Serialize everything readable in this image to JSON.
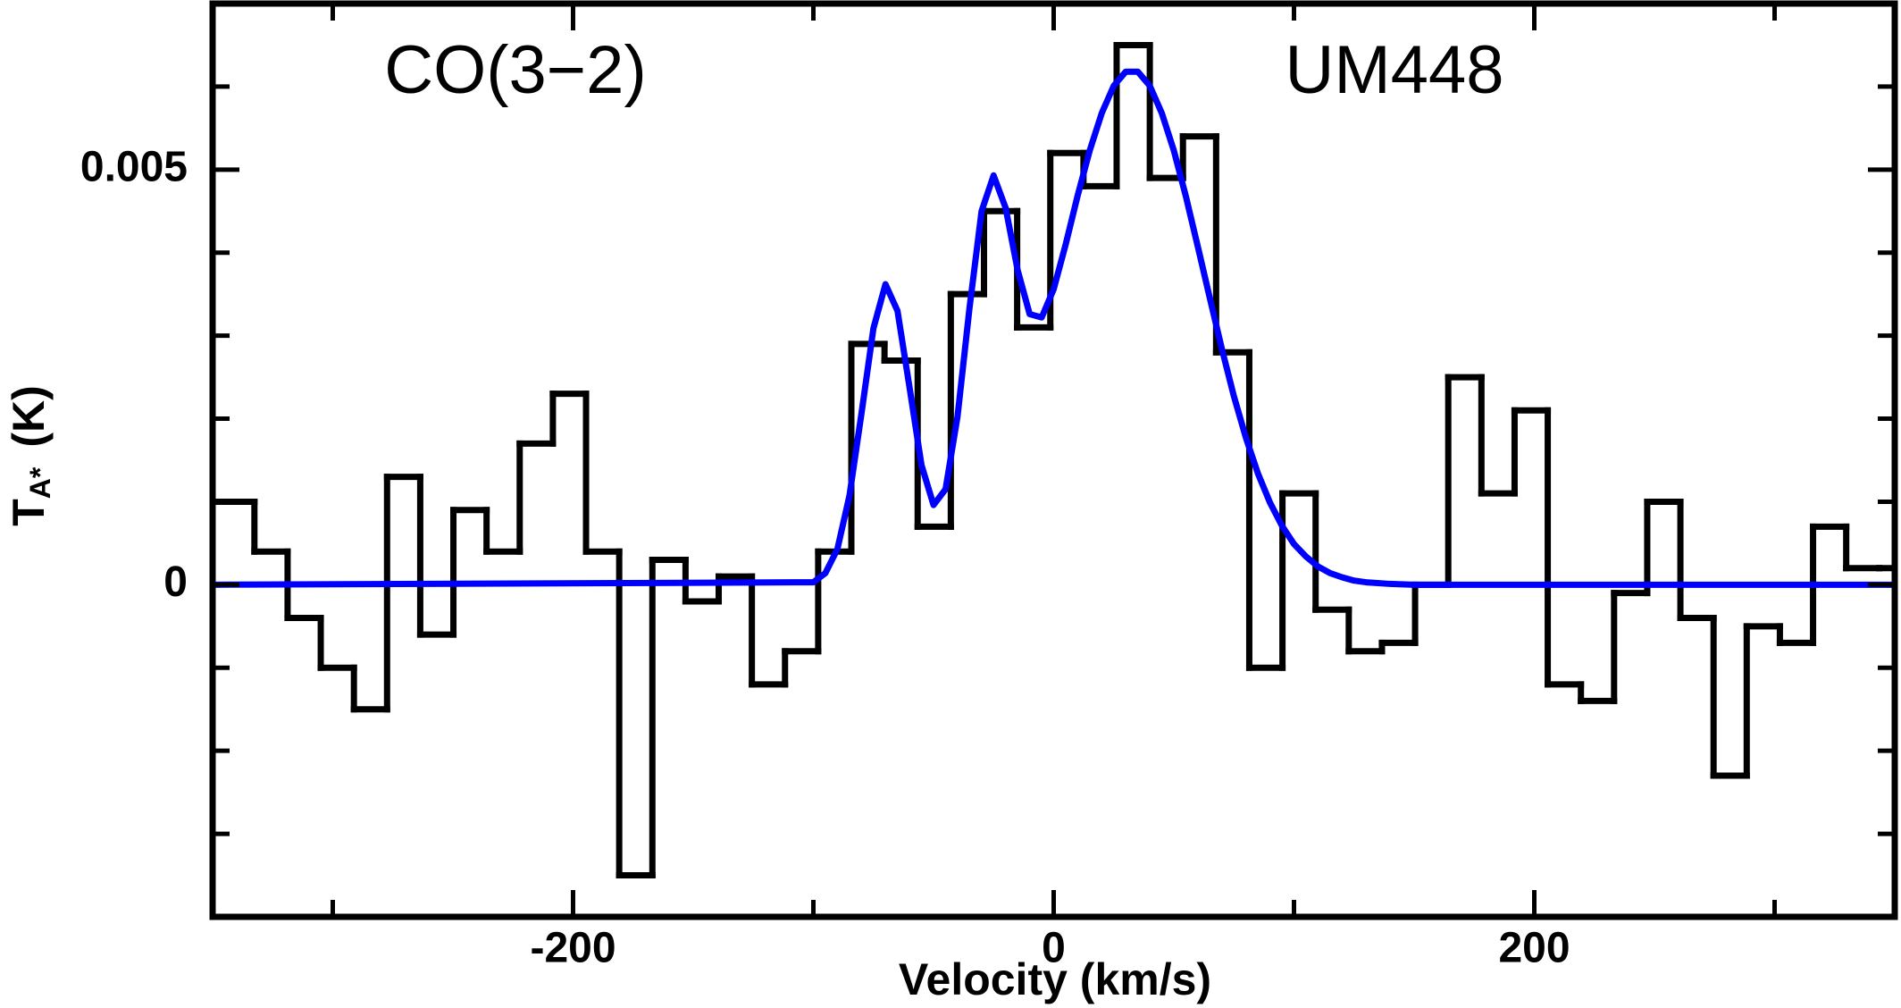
{
  "chart_data": {
    "type": "histogram",
    "annotations": [
      "CO(3−2)",
      "UM448"
    ],
    "xlabel": "Velocity (km/s)",
    "ylabel": [
      "T",
      "A*",
      "(K)"
    ],
    "xlim": [
      -350,
      350
    ],
    "ylim": [
      -0.004,
      0.007
    ],
    "xticks": [
      -200,
      0,
      200
    ],
    "xminor": [
      -300,
      -100,
      100,
      300
    ],
    "yticks": [
      0,
      0.005
    ],
    "yminor": [
      -0.003,
      -0.002,
      -0.001,
      0.001,
      0.002,
      0.003,
      0.004,
      0.006
    ],
    "histogram": {
      "color": "#000000",
      "bins": [
        -350,
        -332.6,
        -318.8,
        -305.0,
        -291.2,
        -277.4,
        -263.6,
        -249.8,
        -236.0,
        -222.2,
        -208.4,
        -194.6,
        -180.8,
        -167.0,
        -153.2,
        -139.4,
        -125.6,
        -111.8,
        -98.0,
        -84.2,
        -70.4,
        -56.6,
        -42.8,
        -29.0,
        -15.2,
        -1.4,
        12.4,
        26.2,
        40.0,
        53.8,
        67.6,
        81.4,
        95.2,
        109.0,
        122.8,
        136.6,
        150.4,
        164.2,
        178.0,
        191.8,
        205.6,
        219.4,
        233.2,
        247.0,
        260.8,
        274.6,
        288.4,
        302.2,
        316.0,
        329.8,
        343.6,
        350
      ],
      "counts": [
        0.001,
        0.0004,
        -0.0004,
        -0.001,
        -0.0015,
        0.0013,
        -0.0006,
        0.0009,
        0.0004,
        0.0017,
        0.0023,
        0.0004,
        -0.0035,
        0.0003,
        -0.0002,
        0.0001,
        -0.0012,
        -0.0008,
        0.0004,
        0.0029,
        0.0027,
        0.0007,
        0.0035,
        0.0045,
        0.0031,
        0.0052,
        0.0048,
        0.0065,
        0.0049,
        0.0054,
        0.0028,
        -0.001,
        0.0011,
        -0.0003,
        -0.0008,
        -0.0007,
        0,
        0.0025,
        0.0011,
        0.0021,
        -0.0012,
        -0.0014,
        -0.0001,
        0.001,
        -0.0004,
        -0.0023,
        -0.0005,
        -0.0007,
        0.0007,
        0.0002,
        0.0002
      ]
    },
    "fit": {
      "color": "#0000ff",
      "x": [
        -350,
        -100,
        -95,
        -90,
        -85,
        -80,
        -75,
        -70,
        -65,
        -60,
        -55,
        -50,
        -45,
        -40,
        -35,
        -30,
        -25,
        -20,
        -15,
        -10,
        -5,
        0,
        5,
        10,
        15,
        20,
        25,
        30,
        35,
        40,
        45,
        50,
        55,
        60,
        65,
        70,
        75,
        80,
        85,
        90,
        95,
        100,
        105,
        110,
        115,
        120,
        125,
        130,
        140,
        150,
        350
      ],
      "values": [
        0,
        3e-05,
        0.00014,
        0.00043,
        0.00107,
        0.00206,
        0.00309,
        0.00362,
        0.0033,
        0.00238,
        0.00144,
        0.00096,
        0.00115,
        0.00203,
        0.00334,
        0.0045,
        0.00493,
        0.00454,
        0.00379,
        0.00326,
        0.00322,
        0.00356,
        0.0041,
        0.00469,
        0.00523,
        0.00568,
        0.00601,
        0.00618,
        0.00618,
        0.00601,
        0.00568,
        0.00523,
        0.00468,
        0.00407,
        0.00345,
        0.00284,
        0.00227,
        0.00177,
        0.00134,
        0.00099,
        0.00071,
        0.00049,
        0.00034,
        0.00022,
        0.00014,
        9e-05,
        5e-05,
        3e-05,
        1e-05,
        0,
        0
      ]
    }
  }
}
